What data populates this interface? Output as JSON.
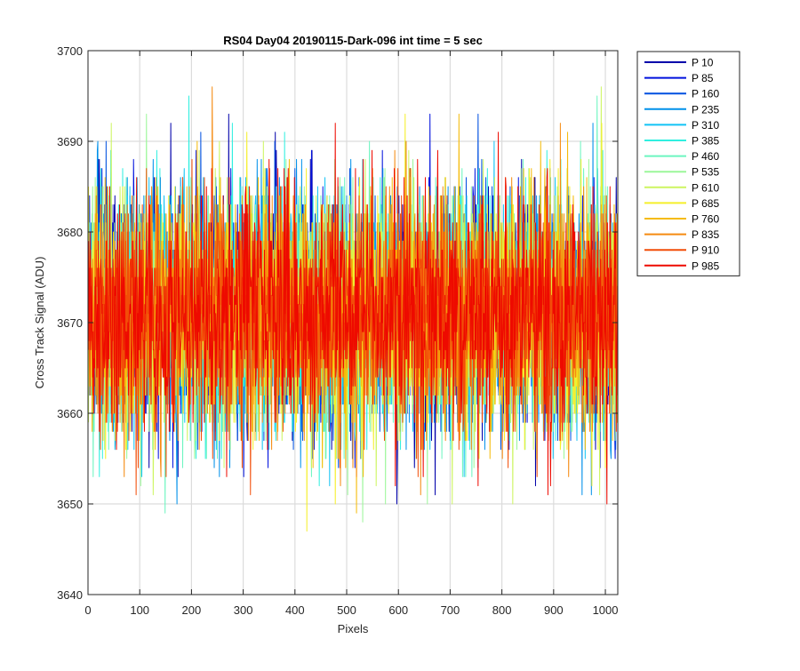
{
  "chart_data": {
    "type": "line",
    "title": "RS04 Day04 20190115-Dark-096 int time = 5 sec",
    "xlabel": "Pixels",
    "ylabel": "Cross Track Signal (ADU)",
    "xlim": [
      0,
      1024
    ],
    "ylim": [
      3640,
      3700
    ],
    "xticks": [
      0,
      100,
      200,
      300,
      400,
      500,
      600,
      700,
      800,
      900,
      1000
    ],
    "yticks": [
      3640,
      3650,
      3660,
      3670,
      3680,
      3690,
      3700
    ],
    "xtick_labels": [
      "0",
      "100",
      "200",
      "300",
      "400",
      "500",
      "600",
      "700",
      "800",
      "900",
      "1000"
    ],
    "ytick_labels": [
      "3640",
      "3650",
      "3660",
      "3670",
      "3680",
      "3690",
      "3700"
    ],
    "grid": true,
    "legend_position": "outside-top-right",
    "noise_model": {
      "points_per_series": 1024,
      "mean": 3671,
      "std": 6.5,
      "min": 3642,
      "max": 3700
    },
    "series": [
      {
        "name": "P 10",
        "color": "#0000aa"
      },
      {
        "name": "P 85",
        "color": "#0011dd"
      },
      {
        "name": "P 160",
        "color": "#0050e0"
      },
      {
        "name": "P 235",
        "color": "#0090ea"
      },
      {
        "name": "P 310",
        "color": "#12c3f5"
      },
      {
        "name": "P 385",
        "color": "#30efe0"
      },
      {
        "name": "P 460",
        "color": "#6cf5c0"
      },
      {
        "name": "P 535",
        "color": "#9cf79a"
      },
      {
        "name": "P 610",
        "color": "#cdf560"
      },
      {
        "name": "P 685",
        "color": "#f5ef2a"
      },
      {
        "name": "P 760",
        "color": "#f5bb0a"
      },
      {
        "name": "P 835",
        "color": "#f58a10"
      },
      {
        "name": "P 910",
        "color": "#f24d08"
      },
      {
        "name": "P 985",
        "color": "#ee0a00"
      }
    ]
  }
}
